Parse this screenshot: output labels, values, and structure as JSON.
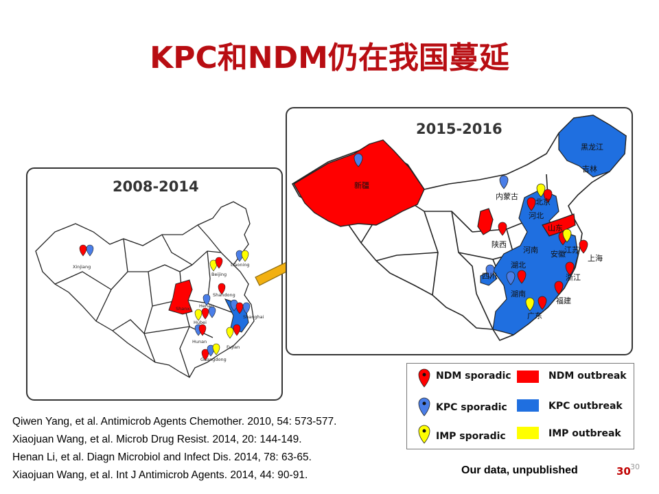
{
  "title": "KPC和NDM仍在我国蔓延",
  "panel_a": {
    "period": "2008-2014",
    "labels": [
      "Xinjiang",
      "Liaoning",
      "Beijing",
      "Shanxi",
      "Henan",
      "Shandong",
      "Hubei",
      "Shanghai",
      "Hunan",
      "Fujian",
      "Guangdong"
    ]
  },
  "panel_b": {
    "period": "2015-2016",
    "labels": [
      "新疆",
      "内蒙古",
      "黑龙江",
      "吉林",
      "北京",
      "河北",
      "山东",
      "陕西",
      "河南",
      "安徽",
      "江苏",
      "上海",
      "湖北",
      "浙江",
      "四川",
      "湖南",
      "福建",
      "广东"
    ]
  },
  "legend": {
    "ndm_sporadic": "NDM sporadic",
    "ndm_outbreak": "NDM outbreak",
    "kpc_sporadic": "KPC sporadic",
    "kpc_outbreak": "KPC outbreak",
    "imp_sporadic": "IMP sporadic",
    "imp_outbreak": "IMP outbreak"
  },
  "colors": {
    "title": "#b80d12",
    "ndm": "#ff0000",
    "kpc": "#1f6fe0",
    "imp": "#ffff00",
    "arrow": "#f2b011"
  },
  "references": [
    "Qiwen Yang, et al. Antimicrob Agents Chemother. 2010, 54: 573-577.",
    "Xiaojuan Wang, et al. Microb Drug Resist. 2014, 20: 144-149.",
    "Henan Li, et al. Diagn Microbiol and Infect Dis. 2014, 78: 63-65.",
    "Xiaojuan Wang, et al. Int J Antimicrob Agents. 2014, 44: 90-91."
  ],
  "note": "Our data, unpublished",
  "page_number": "30",
  "page_number_small": "30"
}
